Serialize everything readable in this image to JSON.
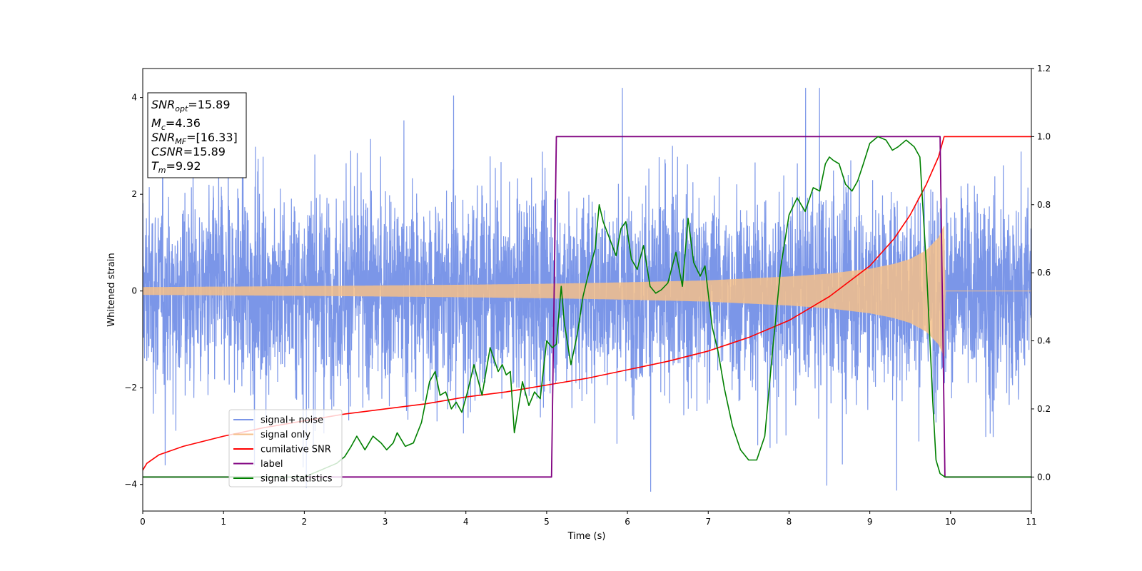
{
  "chart_data": {
    "type": "line",
    "xlabel": "Time (s)",
    "ylabel": "Whitened strain",
    "xlim": [
      0,
      11
    ],
    "ylim_left": [
      -4.55,
      4.6
    ],
    "ylim_right": [
      -0.1,
      1.2
    ],
    "x_ticks": [
      0,
      1,
      2,
      3,
      4,
      5,
      6,
      7,
      8,
      9,
      10,
      11
    ],
    "y_ticks_left": [
      -4,
      -2,
      0,
      2,
      4
    ],
    "y_ticks_right": [
      0.0,
      0.2,
      0.4,
      0.6,
      0.8,
      1.0,
      1.2
    ],
    "grid": false,
    "legend_placement": "lower-left",
    "info_box": {
      "lines": [
        "SNR_opt=15.89",
        "M_c=4.36",
        "SNR_MF=[16.33]",
        "CSNR=15.89",
        "T_m=9.92"
      ]
    },
    "series": [
      {
        "name": "signal+ noise",
        "axis": "left",
        "color": "#7b96e8",
        "description_of_values": "whitened strain noise + signal, approx. unit-variance noise with peaks to about ±4",
        "noise_std": 1.0,
        "x_range": [
          0,
          11
        ]
      },
      {
        "name": "signal only",
        "axis": "left",
        "color": "#f5bf8a",
        "amplitude_points": [
          [
            0,
            0.08
          ],
          [
            2,
            0.1
          ],
          [
            4,
            0.13
          ],
          [
            5,
            0.15
          ],
          [
            6,
            0.18
          ],
          [
            7,
            0.22
          ],
          [
            8,
            0.3
          ],
          [
            8.5,
            0.36
          ],
          [
            9,
            0.46
          ],
          [
            9.3,
            0.56
          ],
          [
            9.5,
            0.66
          ],
          [
            9.7,
            0.84
          ],
          [
            9.85,
            1.1
          ],
          [
            9.92,
            1.35
          ],
          [
            9.93,
            0.0
          ],
          [
            11,
            0.0
          ]
        ]
      },
      {
        "name": "cumilative SNR",
        "axis": "right",
        "color": "#ff0000",
        "x": [
          0,
          0.05,
          0.2,
          0.5,
          1,
          1.5,
          2,
          2.5,
          3,
          3.5,
          4,
          4.5,
          5,
          5.5,
          6,
          6.5,
          7,
          7.5,
          8,
          8.5,
          9,
          9.3,
          9.5,
          9.7,
          9.85,
          9.92,
          10,
          11
        ],
        "values": [
          0.02,
          0.04,
          0.065,
          0.09,
          0.12,
          0.145,
          0.165,
          0.185,
          0.2,
          0.215,
          0.235,
          0.25,
          0.27,
          0.29,
          0.315,
          0.34,
          0.37,
          0.41,
          0.46,
          0.53,
          0.62,
          0.7,
          0.77,
          0.86,
          0.94,
          1.0,
          1.0,
          1.0
        ]
      },
      {
        "name": "label",
        "axis": "right",
        "color": "#800080",
        "x": [
          0,
          5.06,
          5.12,
          9.87,
          9.93,
          11
        ],
        "values": [
          0,
          0,
          1,
          1,
          0,
          0
        ]
      },
      {
        "name": "signal statistics",
        "axis": "right",
        "color": "#008000",
        "x": [
          0,
          0.5,
          0.8,
          1.0,
          1.5,
          2.0,
          2.2,
          2.4,
          2.5,
          2.58,
          2.65,
          2.75,
          2.85,
          2.95,
          3.02,
          3.1,
          3.15,
          3.25,
          3.35,
          3.45,
          3.55,
          3.62,
          3.68,
          3.75,
          3.82,
          3.88,
          3.95,
          4.02,
          4.1,
          4.2,
          4.3,
          4.4,
          4.45,
          4.5,
          4.55,
          4.6,
          4.7,
          4.78,
          4.85,
          4.92,
          5.0,
          5.07,
          5.12,
          5.18,
          5.22,
          5.3,
          5.38,
          5.45,
          5.52,
          5.6,
          5.65,
          5.7,
          5.78,
          5.86,
          5.92,
          5.98,
          6.05,
          6.12,
          6.2,
          6.28,
          6.35,
          6.42,
          6.5,
          6.6,
          6.68,
          6.75,
          6.82,
          6.9,
          6.96,
          7.05,
          7.12,
          7.2,
          7.3,
          7.4,
          7.5,
          7.6,
          7.7,
          7.8,
          7.9,
          8.0,
          8.1,
          8.2,
          8.3,
          8.38,
          8.45,
          8.5,
          8.55,
          8.62,
          8.7,
          8.78,
          8.85,
          8.92,
          9.0,
          9.1,
          9.2,
          9.28,
          9.35,
          9.45,
          9.55,
          9.62,
          9.7,
          9.78,
          9.82,
          9.87,
          9.93,
          10.0,
          10.2,
          11
        ],
        "values": [
          0.0,
          0.0,
          0.0,
          0.0,
          0.0,
          0.0,
          0.02,
          0.04,
          0.06,
          0.09,
          0.12,
          0.08,
          0.12,
          0.1,
          0.08,
          0.1,
          0.13,
          0.09,
          0.1,
          0.16,
          0.28,
          0.31,
          0.24,
          0.25,
          0.2,
          0.22,
          0.19,
          0.25,
          0.33,
          0.24,
          0.38,
          0.31,
          0.33,
          0.3,
          0.31,
          0.13,
          0.28,
          0.21,
          0.25,
          0.23,
          0.4,
          0.38,
          0.39,
          0.56,
          0.45,
          0.33,
          0.42,
          0.53,
          0.6,
          0.67,
          0.8,
          0.75,
          0.7,
          0.65,
          0.73,
          0.75,
          0.64,
          0.61,
          0.68,
          0.56,
          0.54,
          0.55,
          0.57,
          0.66,
          0.56,
          0.76,
          0.63,
          0.59,
          0.62,
          0.44,
          0.37,
          0.26,
          0.15,
          0.08,
          0.05,
          0.05,
          0.12,
          0.38,
          0.62,
          0.77,
          0.82,
          0.78,
          0.85,
          0.84,
          0.92,
          0.94,
          0.93,
          0.92,
          0.86,
          0.84,
          0.87,
          0.92,
          0.98,
          1.0,
          0.99,
          0.96,
          0.97,
          0.99,
          0.97,
          0.94,
          0.62,
          0.22,
          0.05,
          0.01,
          0.0,
          0.0,
          0.0,
          0.0
        ]
      }
    ]
  }
}
